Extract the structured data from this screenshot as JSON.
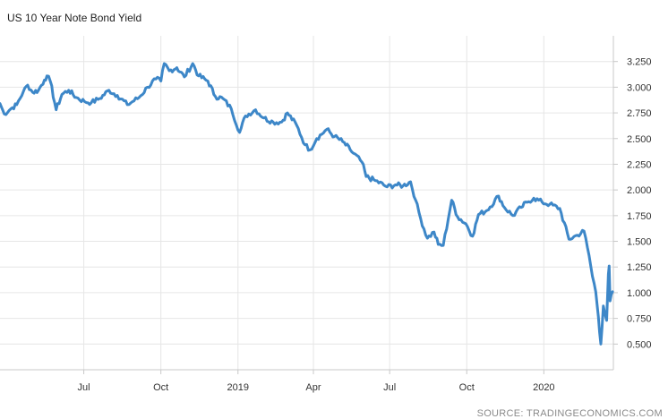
{
  "chart_data": {
    "type": "line",
    "title": "US 10 Year Note Bond Yield",
    "source": "SOURCE: TRADINGECONOMICS.COM",
    "xlabel": "",
    "ylabel": "",
    "y_ticks": [
      "0.500",
      "0.750",
      "1.000",
      "1.250",
      "1.500",
      "1.750",
      "2.000",
      "2.250",
      "2.500",
      "2.750",
      "3.000",
      "3.250"
    ],
    "x_ticks": [
      {
        "label": "Jul",
        "date": "2018-07-01"
      },
      {
        "label": "Oct",
        "date": "2018-10-01"
      },
      {
        "label": "2019",
        "date": "2019-01-01"
      },
      {
        "label": "Apr",
        "date": "2019-04-01"
      },
      {
        "label": "Jul",
        "date": "2019-07-01"
      },
      {
        "label": "Oct",
        "date": "2019-10-01"
      },
      {
        "label": "2020",
        "date": "2020-01-01"
      }
    ],
    "xlim": [
      "2018-03-23",
      "2020-03-24"
    ],
    "ylim": [
      0.25,
      3.5
    ],
    "grid": true,
    "line_color": "#3d87c8",
    "series": [
      {
        "name": "",
        "x": [
          "2018-03-23",
          "2018-03-28",
          "2018-04-05",
          "2018-04-12",
          "2018-04-20",
          "2018-04-25",
          "2018-05-01",
          "2018-05-08",
          "2018-05-15",
          "2018-05-18",
          "2018-05-22",
          "2018-05-29",
          "2018-06-05",
          "2018-06-13",
          "2018-06-22",
          "2018-07-02",
          "2018-07-10",
          "2018-07-20",
          "2018-07-31",
          "2018-08-10",
          "2018-08-22",
          "2018-09-05",
          "2018-09-15",
          "2018-09-25",
          "2018-10-01",
          "2018-10-05",
          "2018-10-11",
          "2018-10-20",
          "2018-10-29",
          "2018-11-08",
          "2018-11-15",
          "2018-11-26",
          "2018-12-05",
          "2018-12-14",
          "2018-12-24",
          "2019-01-03",
          "2019-01-10",
          "2019-01-22",
          "2019-02-01",
          "2019-02-12",
          "2019-02-22",
          "2019-03-01",
          "2019-03-12",
          "2019-03-22",
          "2019-03-28",
          "2019-04-05",
          "2019-04-17",
          "2019-04-26",
          "2019-05-06",
          "2019-05-15",
          "2019-05-29",
          "2019-06-03",
          "2019-06-14",
          "2019-06-28",
          "2019-07-08",
          "2019-07-17",
          "2019-07-26",
          "2019-08-01",
          "2019-08-07",
          "2019-08-15",
          "2019-08-23",
          "2019-08-28",
          "2019-09-03",
          "2019-09-13",
          "2019-09-20",
          "2019-09-30",
          "2019-10-08",
          "2019-10-15",
          "2019-10-25",
          "2019-11-08",
          "2019-11-15",
          "2019-11-25",
          "2019-12-05",
          "2019-12-12",
          "2019-12-20",
          "2019-12-30",
          "2020-01-08",
          "2020-01-20",
          "2020-01-31",
          "2020-02-10",
          "2020-02-18",
          "2020-02-24",
          "2020-02-28",
          "2020-03-03",
          "2020-03-06",
          "2020-03-09",
          "2020-03-12",
          "2020-03-16",
          "2020-03-18",
          "2020-03-19",
          "2020-03-20",
          "2020-03-23"
        ],
        "values": [
          2.84,
          2.74,
          2.79,
          2.83,
          2.96,
          3.02,
          2.95,
          2.97,
          3.07,
          3.11,
          3.06,
          2.78,
          2.93,
          2.97,
          2.9,
          2.86,
          2.85,
          2.89,
          2.97,
          2.92,
          2.83,
          2.9,
          3.0,
          3.08,
          3.06,
          3.23,
          3.16,
          3.19,
          3.1,
          3.23,
          3.11,
          3.06,
          2.91,
          2.89,
          2.79,
          2.56,
          2.72,
          2.78,
          2.7,
          2.66,
          2.66,
          2.75,
          2.63,
          2.44,
          2.39,
          2.5,
          2.59,
          2.52,
          2.47,
          2.39,
          2.27,
          2.13,
          2.09,
          2.03,
          2.05,
          2.04,
          2.08,
          1.9,
          1.72,
          1.53,
          1.59,
          1.47,
          1.46,
          1.9,
          1.74,
          1.67,
          1.55,
          1.76,
          1.8,
          1.94,
          1.83,
          1.75,
          1.83,
          1.88,
          1.92,
          1.88,
          1.86,
          1.82,
          1.52,
          1.56,
          1.6,
          1.36,
          1.16,
          1.01,
          0.77,
          0.5,
          0.87,
          0.73,
          1.18,
          1.26,
          0.92,
          1.01
        ]
      }
    ]
  }
}
